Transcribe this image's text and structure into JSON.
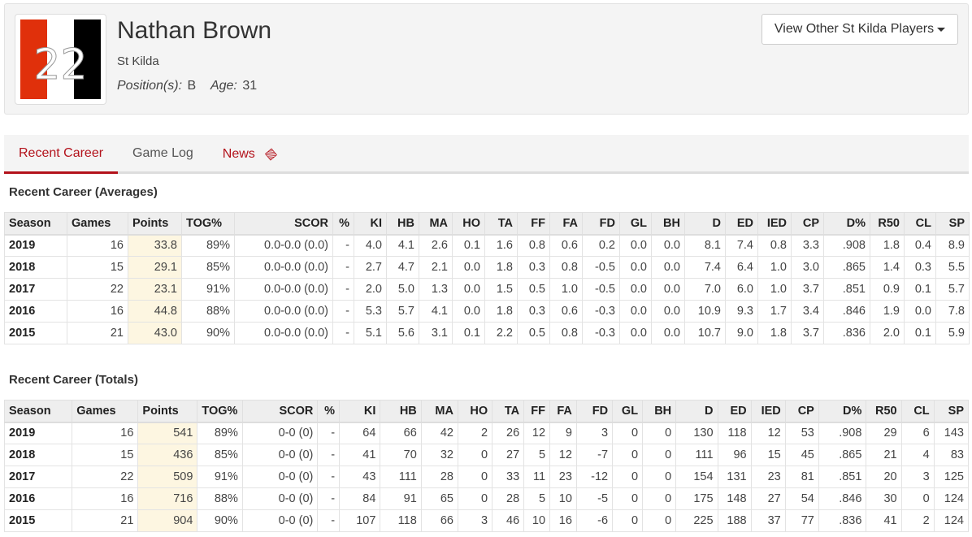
{
  "player": {
    "number": "22",
    "name": "Nathan Brown",
    "team": "St Kilda",
    "position_label": "Position(s):",
    "position": "B",
    "age_label": "Age:",
    "age": "31",
    "colors": [
      "#e0300b",
      "#ffffff",
      "#000000"
    ]
  },
  "other_players_button": "View Other St Kilda Players",
  "tabs": [
    {
      "label": "Recent Career",
      "active": true
    },
    {
      "label": "Game Log"
    },
    {
      "label": "News",
      "icon": "ticket-icon"
    }
  ],
  "averages": {
    "title": "Recent Career (Averages)",
    "columns": [
      "Season",
      "Games",
      "Points",
      "TOG%",
      "SCOR",
      "%",
      "KI",
      "HB",
      "MA",
      "HO",
      "TA",
      "FF",
      "FA",
      "FD",
      "GL",
      "BH",
      "D",
      "ED",
      "IED",
      "CP",
      "D%",
      "R50",
      "CL",
      "SP"
    ],
    "rows": [
      [
        "2019",
        "16",
        "33.8",
        "89%",
        "0.0-0.0 (0.0)",
        "-",
        "4.0",
        "4.1",
        "2.6",
        "0.1",
        "1.6",
        "0.8",
        "0.6",
        "0.2",
        "0.0",
        "0.0",
        "8.1",
        "7.4",
        "0.8",
        "3.3",
        ".908",
        "1.8",
        "0.4",
        "8.9"
      ],
      [
        "2018",
        "15",
        "29.1",
        "85%",
        "0.0-0.0 (0.0)",
        "-",
        "2.7",
        "4.7",
        "2.1",
        "0.0",
        "1.8",
        "0.3",
        "0.8",
        "-0.5",
        "0.0",
        "0.0",
        "7.4",
        "6.4",
        "1.0",
        "3.0",
        ".865",
        "1.4",
        "0.3",
        "5.5"
      ],
      [
        "2017",
        "22",
        "23.1",
        "91%",
        "0.0-0.0 (0.0)",
        "-",
        "2.0",
        "5.0",
        "1.3",
        "0.0",
        "1.5",
        "0.5",
        "1.0",
        "-0.5",
        "0.0",
        "0.0",
        "7.0",
        "6.0",
        "1.0",
        "3.7",
        ".851",
        "0.9",
        "0.1",
        "5.7"
      ],
      [
        "2016",
        "16",
        "44.8",
        "88%",
        "0.0-0.0 (0.0)",
        "-",
        "5.3",
        "5.7",
        "4.1",
        "0.0",
        "1.8",
        "0.3",
        "0.6",
        "-0.3",
        "0.0",
        "0.0",
        "10.9",
        "9.3",
        "1.7",
        "3.4",
        ".846",
        "1.9",
        "0.0",
        "7.8"
      ],
      [
        "2015",
        "21",
        "43.0",
        "90%",
        "0.0-0.0 (0.0)",
        "-",
        "5.1",
        "5.6",
        "3.1",
        "0.1",
        "2.2",
        "0.5",
        "0.8",
        "-0.3",
        "0.0",
        "0.0",
        "10.7",
        "9.0",
        "1.8",
        "3.7",
        ".836",
        "2.0",
        "0.1",
        "5.9"
      ]
    ]
  },
  "totals": {
    "title": "Recent Career (Totals)",
    "columns": [
      "Season",
      "Games",
      "Points",
      "TOG%",
      "SCOR",
      "%",
      "KI",
      "HB",
      "MA",
      "HO",
      "TA",
      "FF",
      "FA",
      "FD",
      "GL",
      "BH",
      "D",
      "ED",
      "IED",
      "CP",
      "D%",
      "R50",
      "CL",
      "SP"
    ],
    "rows": [
      [
        "2019",
        "16",
        "541",
        "89%",
        "0-0 (0)",
        "-",
        "64",
        "66",
        "42",
        "2",
        "26",
        "12",
        "9",
        "3",
        "0",
        "0",
        "130",
        "118",
        "12",
        "53",
        ".908",
        "29",
        "6",
        "143"
      ],
      [
        "2018",
        "15",
        "436",
        "85%",
        "0-0 (0)",
        "-",
        "41",
        "70",
        "32",
        "0",
        "27",
        "5",
        "12",
        "-7",
        "0",
        "0",
        "111",
        "96",
        "15",
        "45",
        ".865",
        "21",
        "4",
        "83"
      ],
      [
        "2017",
        "22",
        "509",
        "91%",
        "0-0 (0)",
        "-",
        "43",
        "111",
        "28",
        "0",
        "33",
        "11",
        "23",
        "-12",
        "0",
        "0",
        "154",
        "131",
        "23",
        "81",
        ".851",
        "20",
        "3",
        "125"
      ],
      [
        "2016",
        "16",
        "716",
        "88%",
        "0-0 (0)",
        "-",
        "84",
        "91",
        "65",
        "0",
        "28",
        "5",
        "10",
        "-5",
        "0",
        "0",
        "175",
        "148",
        "27",
        "54",
        ".846",
        "30",
        "0",
        "124"
      ],
      [
        "2015",
        "21",
        "904",
        "90%",
        "0-0 (0)",
        "-",
        "107",
        "118",
        "66",
        "3",
        "46",
        "10",
        "16",
        "-6",
        "0",
        "0",
        "225",
        "188",
        "37",
        "77",
        ".836",
        "41",
        "2",
        "124"
      ]
    ]
  }
}
